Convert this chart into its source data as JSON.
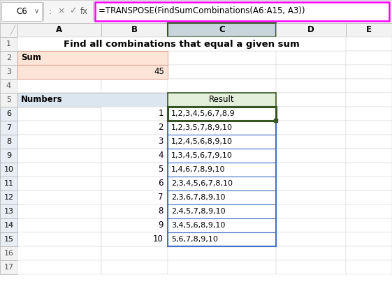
{
  "title": "Find all combinations that equal a given sum",
  "formula_bar_text": "=TRANSPOSE(FindSumCombinations(A6:A15, A3))",
  "cell_ref": "C6",
  "sum_label": "Sum",
  "sum_value": "45",
  "numbers_label": "Numbers",
  "numbers": [
    "1",
    "2",
    "3",
    "4",
    "5",
    "6",
    "7",
    "8",
    "9",
    "10"
  ],
  "result_label": "Result",
  "results": [
    "1,2,3,4,5,6,7,8,9",
    "1,2,3,5,7,8,9,10",
    "1,2,4,5,6,8,9,10",
    "1,3,4,5,6,7,9,10",
    "1,4,6,7,8,9,10",
    "2,3,4,5,6,7,8,10",
    "2,3,6,7,8,9,10",
    "2,4,5,7,8,9,10",
    "3,4,5,6,8,9,10",
    "5,6,7,8,9,10"
  ],
  "bg_color": "#ffffff",
  "header_bg": "#f2f2f2",
  "header_border": "#b0b0b0",
  "cell_border": "#d0d0d0",
  "sum_cell_bg": "#fce4d6",
  "sum_border": "#e0a899",
  "numbers_cell_bg": "#dce6f1",
  "result_header_bg": "#e2efda",
  "result_border_color": "#375623",
  "selected_col_bg": "#c8d4dc",
  "formula_bar_border": "#ff00ff",
  "arrow_color": "#ff00ff",
  "row_num_selected_bg": "#e8e8e8",
  "result_range_border": "#4472c4"
}
